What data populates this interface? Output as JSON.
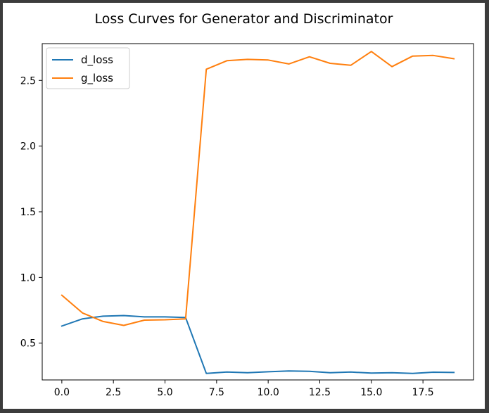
{
  "chart_data": {
    "type": "line",
    "title": "Loss Curves for Generator and Discriminator",
    "xlabel": "",
    "ylabel": "",
    "xlim": [
      -0.95,
      19.95
    ],
    "ylim": [
      0.22,
      2.78
    ],
    "xticks": [
      0.0,
      2.5,
      5.0,
      7.5,
      10.0,
      12.5,
      15.0,
      17.5
    ],
    "xtick_labels": [
      "0.0",
      "2.5",
      "5.0",
      "7.5",
      "10.0",
      "12.5",
      "15.0",
      "17.5"
    ],
    "yticks": [
      0.5,
      1.0,
      1.5,
      2.0,
      2.5
    ],
    "ytick_labels": [
      "0.5",
      "1.0",
      "1.5",
      "2.0",
      "2.5"
    ],
    "grid": false,
    "legend_position": "top-left",
    "x": [
      0,
      1,
      2,
      3,
      4,
      5,
      6,
      7,
      8,
      9,
      10,
      11,
      12,
      13,
      14,
      15,
      16,
      17,
      18,
      19
    ],
    "series": [
      {
        "name": "d_loss",
        "color": "#1f77b4",
        "values": [
          0.63,
          0.685,
          0.705,
          0.71,
          0.7,
          0.7,
          0.695,
          0.27,
          0.28,
          0.275,
          0.282,
          0.288,
          0.286,
          0.275,
          0.28,
          0.272,
          0.275,
          0.27,
          0.279,
          0.277
        ]
      },
      {
        "name": "g_loss",
        "color": "#ff7f0e",
        "values": [
          0.865,
          0.73,
          0.665,
          0.635,
          0.675,
          0.678,
          0.685,
          2.585,
          2.65,
          2.66,
          2.655,
          2.625,
          2.68,
          2.63,
          2.615,
          2.72,
          2.605,
          2.685,
          2.69,
          2.665
        ]
      }
    ]
  }
}
